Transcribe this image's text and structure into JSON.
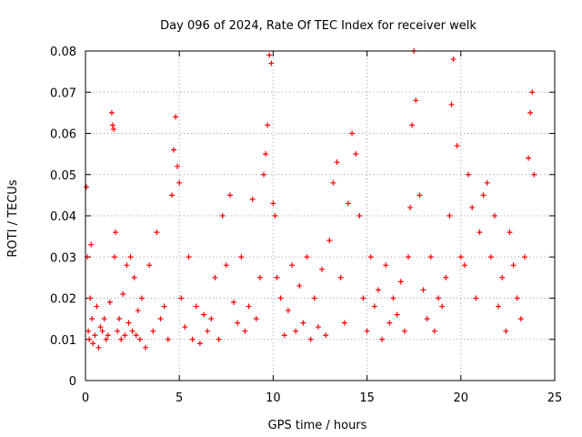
{
  "chart_data": {
    "type": "scatter",
    "title": "Day 096 of 2024, Rate Of TEC Index for receiver welk",
    "xlabel": "GPS time / hours",
    "ylabel": "ROTI / TECUs",
    "xlim": [
      0,
      25
    ],
    "ylim": [
      0,
      0.08
    ],
    "x_ticks": [
      "0",
      "5",
      "10",
      "15",
      "20",
      "25"
    ],
    "y_ticks": [
      "0",
      "0.01",
      "0.02",
      "0.03",
      "0.04",
      "0.05",
      "0.06",
      "0.07",
      "0.08"
    ],
    "grid": true,
    "marker": "plus",
    "color": "#ff0000",
    "series": [
      {
        "x": [
          0.05,
          0.1,
          0.15,
          0.2,
          0.25,
          0.3,
          0.35,
          0.4,
          0.5,
          0.6,
          0.7,
          0.8,
          0.9,
          1.0,
          1.1,
          1.2,
          1.3,
          1.4,
          1.45,
          1.5,
          1.55,
          1.6,
          1.7,
          1.8,
          1.9,
          2.0,
          2.1,
          2.2,
          2.3,
          2.4,
          2.5,
          2.6,
          2.7,
          2.8,
          2.9,
          3.0,
          3.2,
          3.4,
          3.6,
          3.8,
          4.0,
          4.2,
          4.4,
          4.6,
          4.7,
          4.8,
          4.9,
          5.0,
          5.1,
          5.3,
          5.5,
          5.7,
          5.9,
          6.1,
          6.3,
          6.5,
          6.7,
          6.9,
          7.1,
          7.3,
          7.5,
          7.7,
          7.9,
          8.1,
          8.3,
          8.5,
          8.7,
          8.9,
          9.1,
          9.3,
          9.5,
          9.6,
          9.7,
          9.8,
          9.9,
          10.0,
          10.1,
          10.2,
          10.4,
          10.6,
          10.8,
          11.0,
          11.2,
          11.4,
          11.6,
          11.8,
          12.0,
          12.2,
          12.4,
          12.6,
          12.8,
          13.0,
          13.2,
          13.4,
          13.6,
          13.8,
          14.0,
          14.2,
          14.4,
          14.6,
          14.8,
          15.0,
          15.2,
          15.4,
          15.6,
          15.8,
          16.0,
          16.2,
          16.4,
          16.6,
          16.8,
          17.0,
          17.2,
          17.3,
          17.4,
          17.5,
          17.6,
          17.8,
          18.0,
          18.2,
          18.4,
          18.6,
          18.8,
          19.0,
          19.2,
          19.4,
          19.5,
          19.6,
          19.8,
          20.0,
          20.2,
          20.4,
          20.6,
          20.8,
          21.0,
          21.2,
          21.4,
          21.6,
          21.8,
          22.0,
          22.2,
          22.4,
          22.6,
          22.8,
          23.0,
          23.2,
          23.4,
          23.6,
          23.7,
          23.8,
          23.9
        ],
        "y": [
          0.047,
          0.03,
          0.012,
          0.01,
          0.02,
          0.033,
          0.015,
          0.009,
          0.011,
          0.018,
          0.008,
          0.013,
          0.012,
          0.015,
          0.01,
          0.011,
          0.019,
          0.065,
          0.062,
          0.061,
          0.03,
          0.036,
          0.012,
          0.015,
          0.01,
          0.021,
          0.011,
          0.028,
          0.014,
          0.03,
          0.012,
          0.025,
          0.011,
          0.017,
          0.01,
          0.02,
          0.008,
          0.028,
          0.012,
          0.036,
          0.015,
          0.018,
          0.01,
          0.045,
          0.056,
          0.064,
          0.052,
          0.048,
          0.02,
          0.013,
          0.03,
          0.01,
          0.018,
          0.009,
          0.016,
          0.012,
          0.015,
          0.025,
          0.01,
          0.04,
          0.028,
          0.045,
          0.019,
          0.014,
          0.03,
          0.012,
          0.018,
          0.044,
          0.015,
          0.025,
          0.05,
          0.055,
          0.062,
          0.079,
          0.077,
          0.043,
          0.04,
          0.025,
          0.02,
          0.011,
          0.017,
          0.028,
          0.012,
          0.023,
          0.014,
          0.03,
          0.01,
          0.02,
          0.013,
          0.027,
          0.011,
          0.034,
          0.048,
          0.053,
          0.025,
          0.014,
          0.043,
          0.06,
          0.055,
          0.04,
          0.02,
          0.012,
          0.03,
          0.018,
          0.022,
          0.01,
          0.028,
          0.014,
          0.02,
          0.016,
          0.024,
          0.012,
          0.03,
          0.042,
          0.062,
          0.08,
          0.068,
          0.045,
          0.022,
          0.015,
          0.03,
          0.012,
          0.02,
          0.018,
          0.025,
          0.04,
          0.067,
          0.078,
          0.057,
          0.03,
          0.028,
          0.05,
          0.042,
          0.02,
          0.036,
          0.045,
          0.048,
          0.03,
          0.04,
          0.018,
          0.025,
          0.012,
          0.036,
          0.028,
          0.02,
          0.015,
          0.03,
          0.054,
          0.065,
          0.07,
          0.05
        ]
      }
    ]
  }
}
